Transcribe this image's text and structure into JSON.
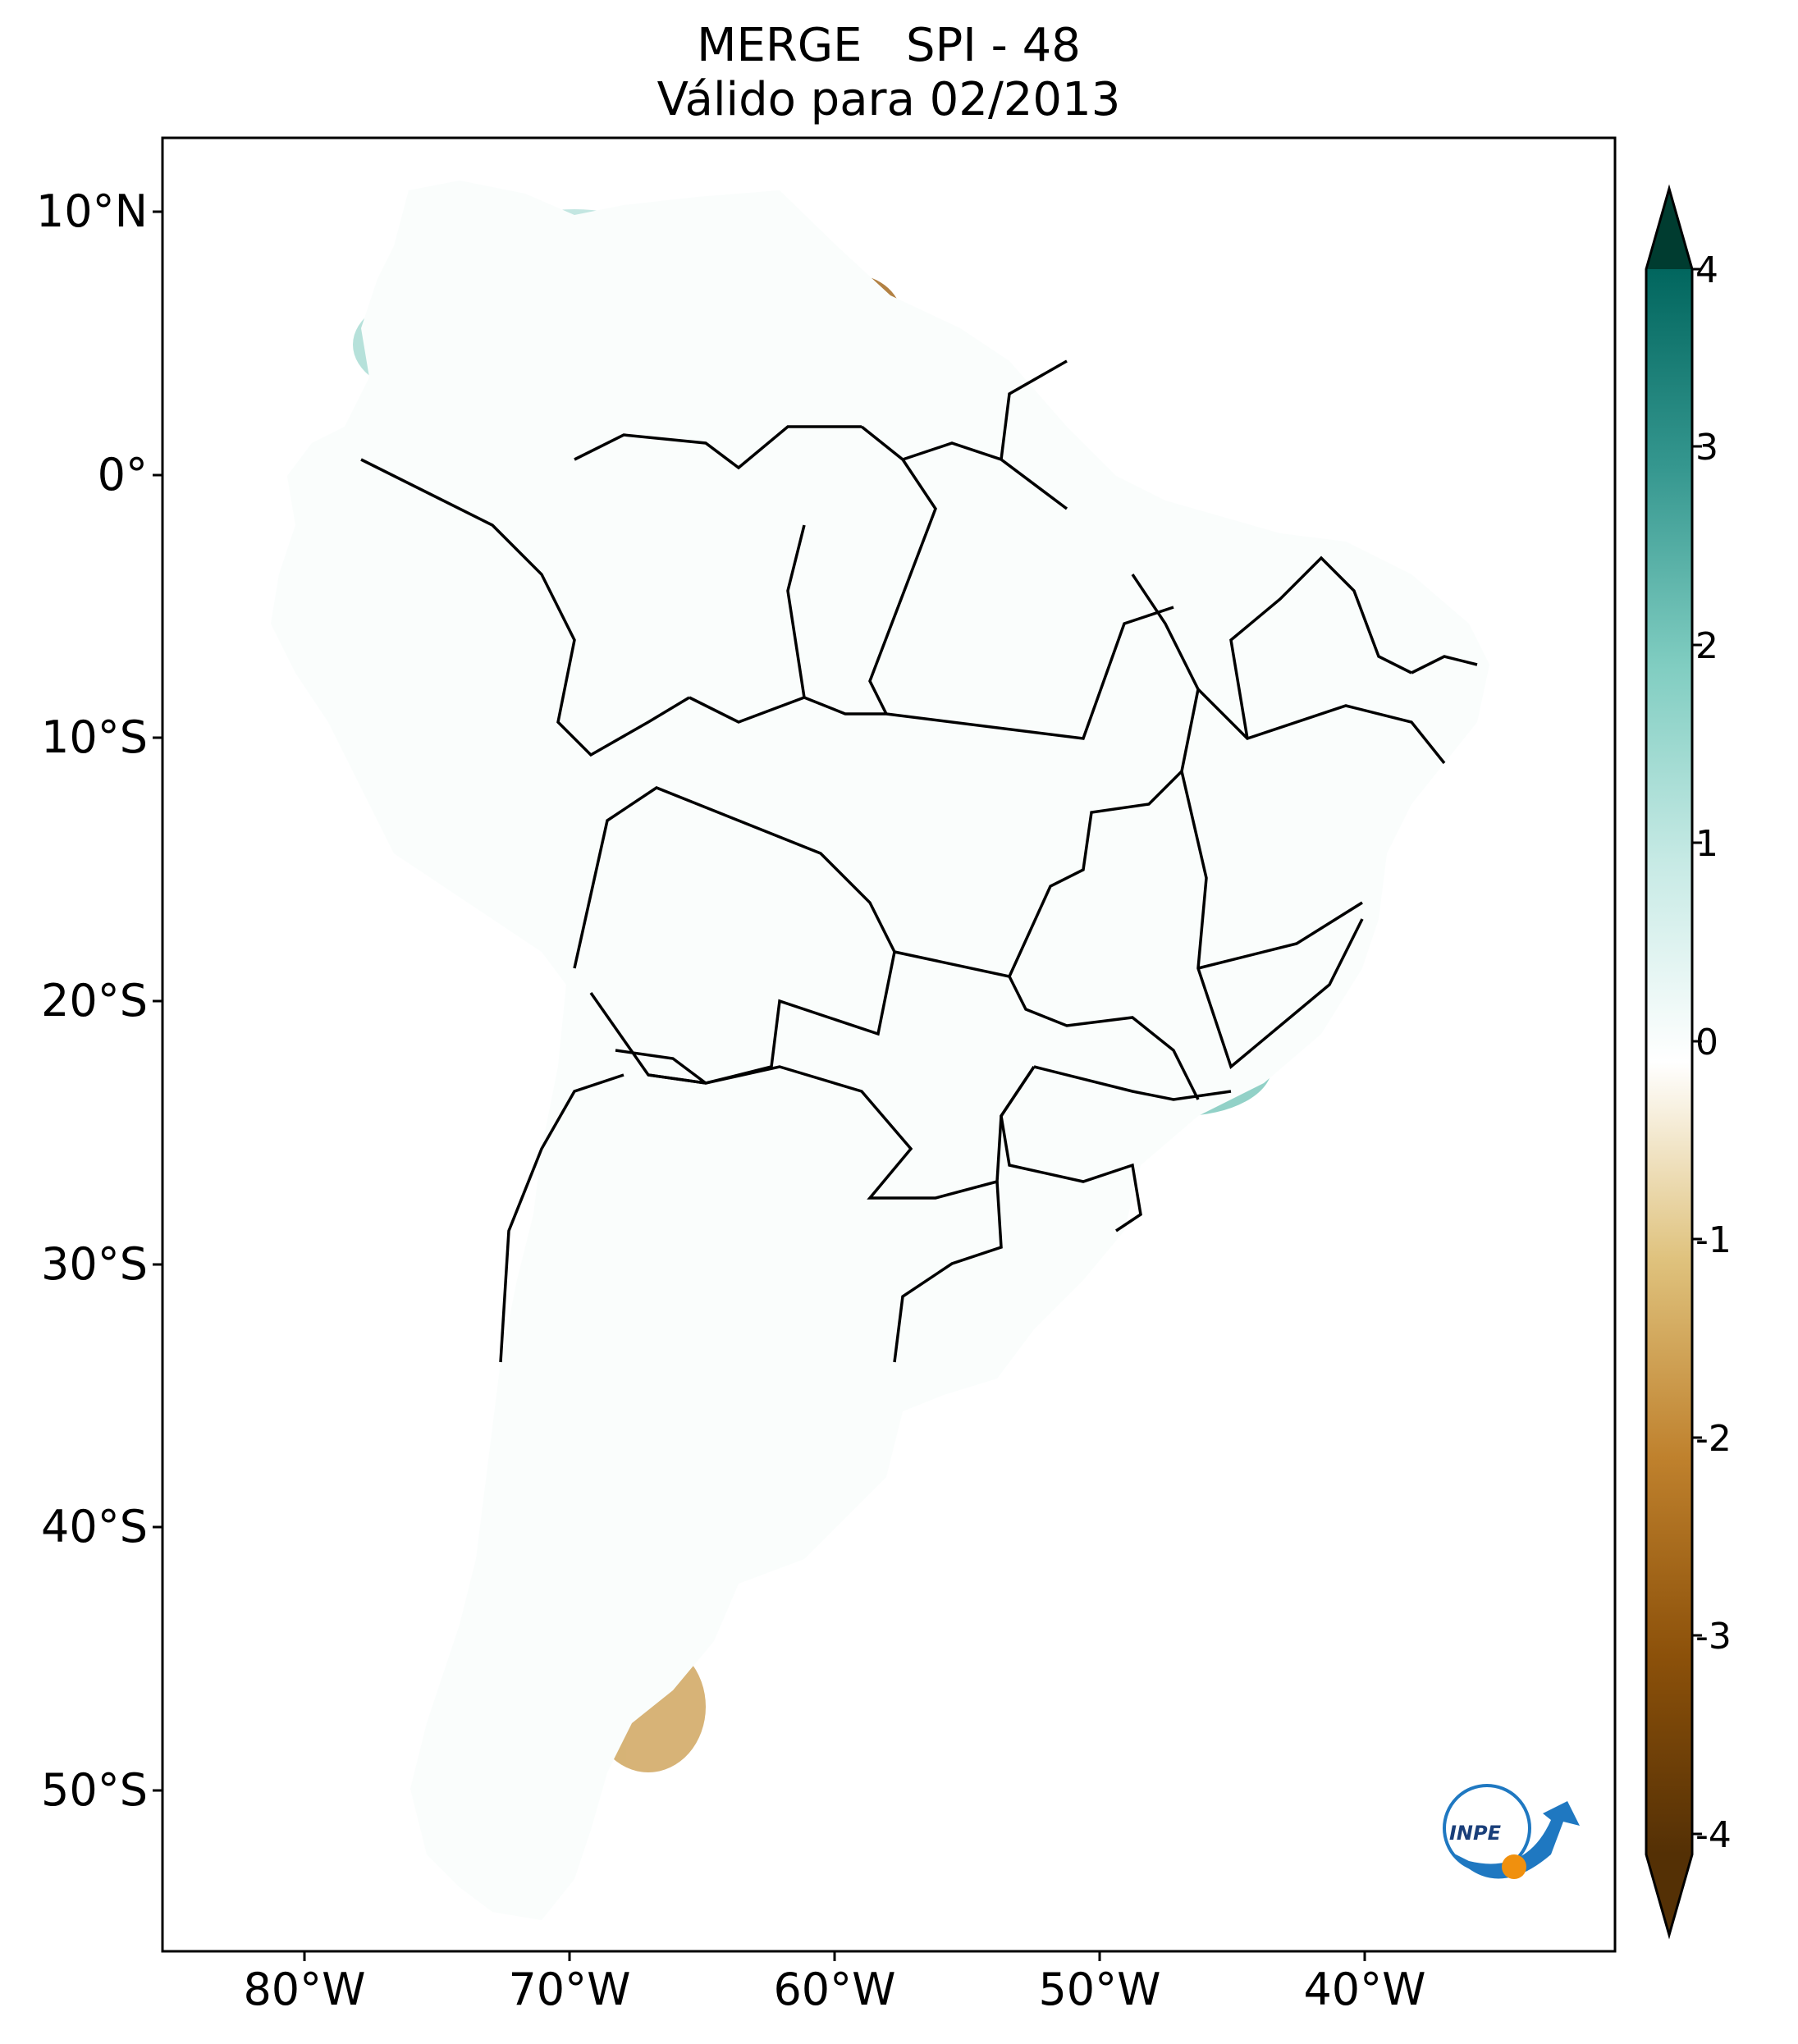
{
  "title": {
    "line1": "MERGE   SPI - 48",
    "line2": "Válido para 02/2013"
  },
  "latitude_labels": [
    "10°N",
    "0°",
    "10°S",
    "20°S",
    "30°S",
    "40°S",
    "50°S"
  ],
  "longitude_labels": [
    "80°W",
    "70°W",
    "60°W",
    "50°W",
    "40°W"
  ],
  "colorbar": {
    "tick_labels": [
      "4",
      "3",
      "2",
      "1",
      "0",
      "-1",
      "-2",
      "-3",
      "-4"
    ],
    "range": [
      -4,
      4
    ],
    "extend": "both",
    "colors": {
      "min": "#543005",
      "brown": "#8c510a",
      "tan": "#bf812d",
      "light_tan": "#dfc27d",
      "cream": "#f6e8c3",
      "neutral": "#ffffff",
      "light_teal": "#c7eae5",
      "teal": "#80cdc1",
      "mid_teal": "#35978f",
      "dark_teal": "#01665e",
      "max": "#003c30"
    }
  },
  "logo": {
    "text": "INPE",
    "icon": "inpe-logo-icon"
  }
}
